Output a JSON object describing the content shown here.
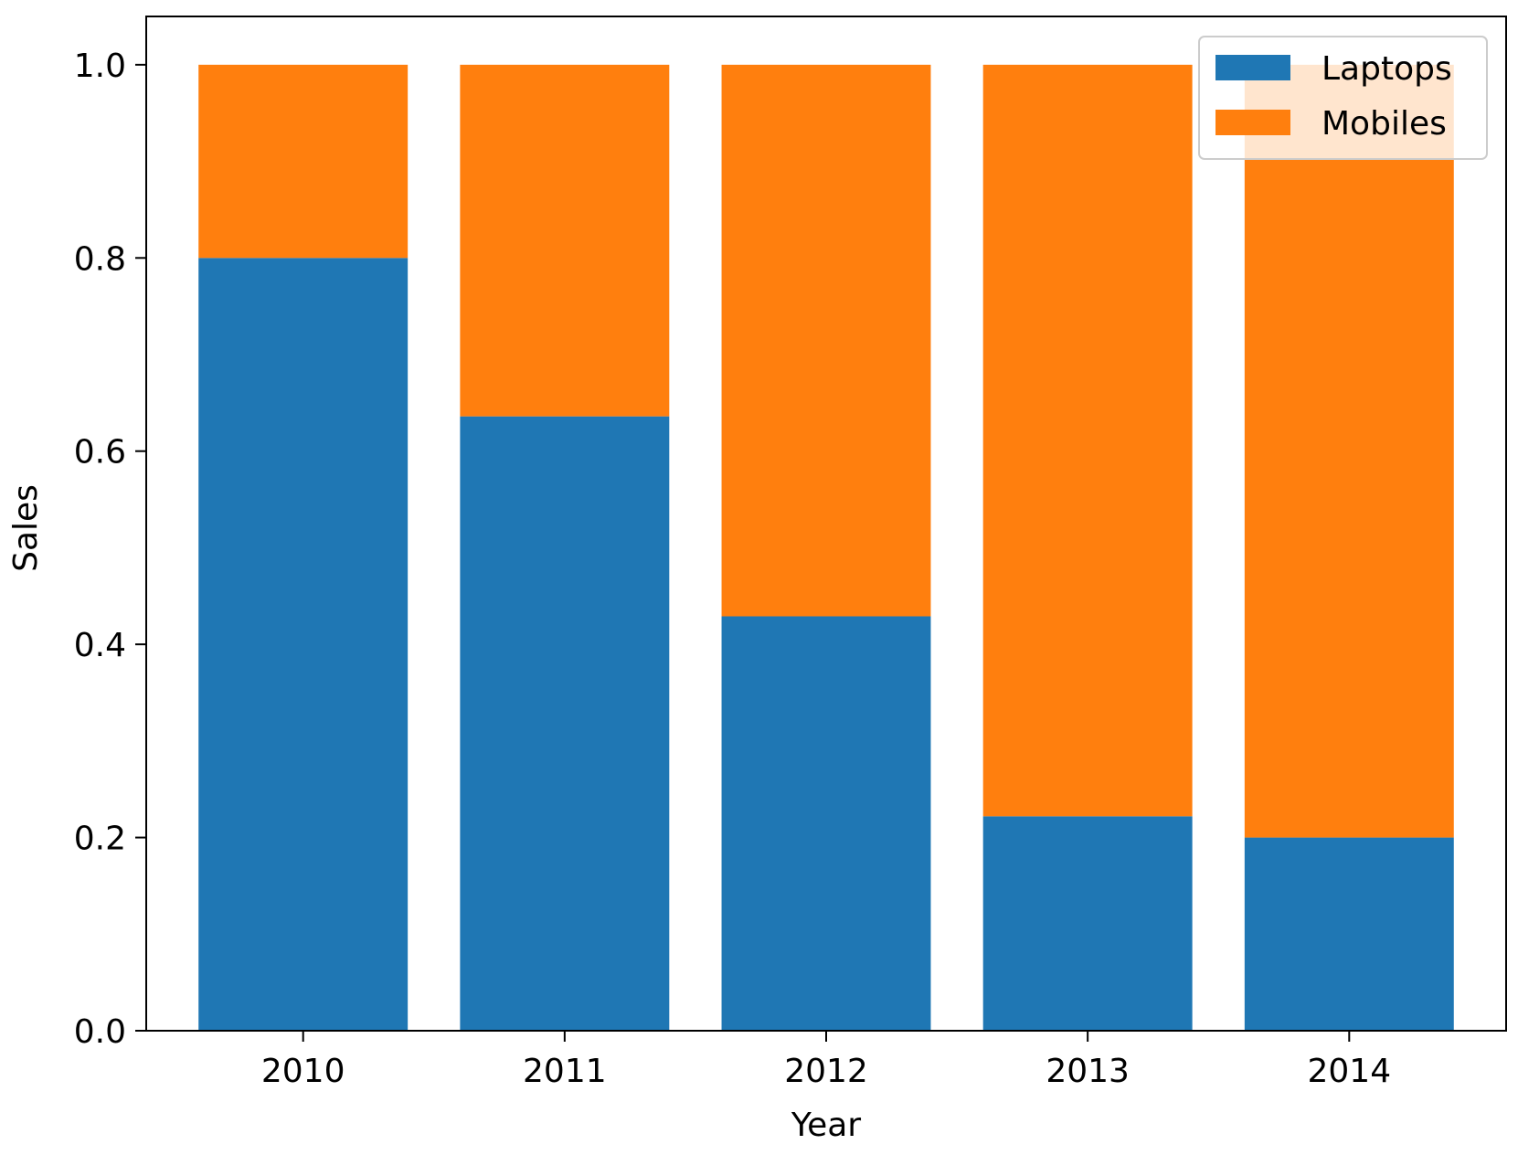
{
  "chart_data": {
    "type": "bar",
    "stacked": true,
    "title": "",
    "xlabel": "Year",
    "ylabel": "Sales",
    "categories": [
      "2010",
      "2011",
      "2012",
      "2013",
      "2014"
    ],
    "series": [
      {
        "name": "Laptops",
        "color": "#1f77b4",
        "values": [
          0.8,
          0.636,
          0.429,
          0.222,
          0.2
        ]
      },
      {
        "name": "Mobiles",
        "color": "#ff7f0e",
        "values": [
          0.2,
          0.364,
          0.571,
          0.778,
          0.8
        ]
      }
    ],
    "ylim": [
      0,
      1.05
    ],
    "yticks": [
      "0.0",
      "0.2",
      "0.4",
      "0.6",
      "0.8",
      "1.0"
    ],
    "grid": false,
    "legend_position": "top-right"
  }
}
